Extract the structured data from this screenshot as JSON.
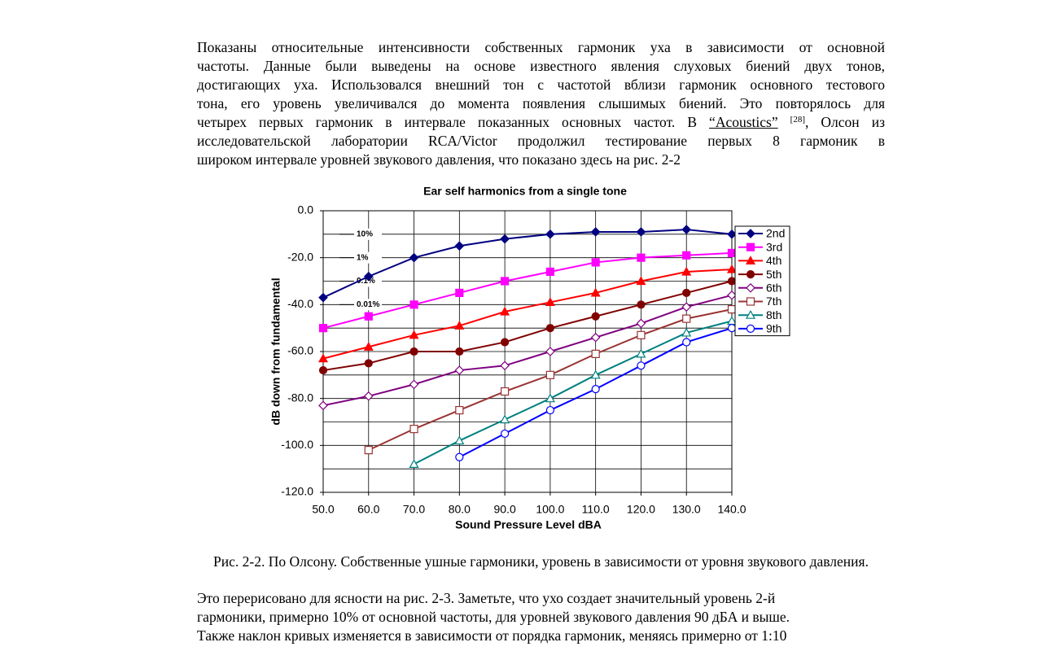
{
  "intro_lines": [
    "Показаны относительные интенсивности собственных гармоник уха в зависимости от основной",
    "частоты. Данные были выведены на основе известного явления слуховых биений двух тонов,",
    "достигающих уха. Использовался внешний тон с частотой вблизи гармоник основного тестового",
    "тона, его уровень увеличивался до момента появления слышимых биений. Это повторялось для",
    {
      "before": "четырех первых гармоник в интервале показанных основных частот. В ",
      "link": "“Acoustics”",
      "ref": "[28]",
      "after": ", Олсон из"
    },
    "исследовательской лаборатории RCA/Victor продолжил тестирование первых 8 гармоник в",
    "широком интервале уровней звукового давления, что показано здесь на рис. 2-2"
  ],
  "chart_data": {
    "type": "line",
    "title": "Ear self harmonics from a single tone",
    "x_label": "Sound Pressure Level dBA",
    "y_label": "dB down from fundamental",
    "x": [
      50,
      60,
      70,
      80,
      90,
      100,
      110,
      120,
      130,
      140
    ],
    "xlim": [
      50,
      140
    ],
    "xticks": [
      {
        "value": 50,
        "label": "50.0"
      },
      {
        "value": 60,
        "label": "60.0"
      },
      {
        "value": 70,
        "label": "70.0"
      },
      {
        "value": 80,
        "label": "80.0"
      },
      {
        "value": 90,
        "label": "90.0"
      },
      {
        "value": 100,
        "label": "100.0"
      },
      {
        "value": 110,
        "label": "110.0"
      },
      {
        "value": 120,
        "label": "120.0"
      },
      {
        "value": 130,
        "label": "130.0"
      },
      {
        "value": 140,
        "label": "140.0"
      }
    ],
    "ylim": [
      -120,
      0
    ],
    "yticks": [
      {
        "value": 0,
        "label": "0.0"
      },
      {
        "value": -20,
        "label": "-20.0"
      },
      {
        "value": -40,
        "label": "-40.0"
      },
      {
        "value": -60,
        "label": "-60.0"
      },
      {
        "value": -80,
        "label": "-80.0"
      },
      {
        "value": -100,
        "label": "-100.0"
      },
      {
        "value": -120,
        "label": "-120.0"
      }
    ],
    "y_minor_grid": [
      -10,
      -30,
      -50,
      -70,
      -90,
      -110
    ],
    "grid": true,
    "legend": "right",
    "annotations": [
      {
        "text": "10%",
        "y": -10
      },
      {
        "text": "1%",
        "y": -20
      },
      {
        "text": "0.1%",
        "y": -30
      },
      {
        "text": "0.01%",
        "y": -40
      }
    ],
    "series": [
      {
        "name": "2nd",
        "color": "#000080",
        "marker": "diamond",
        "filled": true,
        "values": [
          -37,
          -28,
          -20,
          -15,
          -12,
          -10,
          -9,
          -9,
          -8,
          -10
        ]
      },
      {
        "name": "3rd",
        "color": "#ff00ff",
        "marker": "square",
        "filled": true,
        "values": [
          -50,
          -45,
          -40,
          -35,
          -30,
          -26,
          -22,
          -20,
          -19,
          -18
        ]
      },
      {
        "name": "4th",
        "color": "#ff0000",
        "marker": "triangle",
        "filled": true,
        "values": [
          -63,
          -58,
          -53,
          -49,
          -43,
          -39,
          -35,
          -30,
          -26,
          -25
        ]
      },
      {
        "name": "5th",
        "color": "#800000",
        "marker": "circle",
        "filled": true,
        "values": [
          -68,
          -65,
          -60,
          -60,
          -56,
          -50,
          -45,
          -40,
          -35,
          -30
        ]
      },
      {
        "name": "6th",
        "color": "#800080",
        "marker": "diamond",
        "filled": false,
        "values": [
          -83,
          -79,
          -74,
          -68,
          -66,
          -60,
          -54,
          -48,
          -41,
          -36
        ]
      },
      {
        "name": "7th",
        "color": "#993333",
        "marker": "square",
        "filled": false,
        "values": [
          null,
          -102,
          -93,
          -85,
          -77,
          -70,
          -61,
          -53,
          -46,
          -42
        ]
      },
      {
        "name": "8th",
        "color": "#008080",
        "marker": "triangle",
        "filled": false,
        "values": [
          null,
          null,
          -108,
          -98,
          -89,
          -80,
          -70,
          -61,
          -52,
          -47
        ]
      },
      {
        "name": "9th",
        "color": "#0000ff",
        "marker": "circle",
        "filled": false,
        "values": [
          null,
          null,
          null,
          -105,
          -95,
          -85,
          -76,
          -66,
          -56,
          -50
        ]
      }
    ]
  },
  "caption": "Рис. 2-2. По Олсону. Собственные ушные гармоники, уровень в зависимости от уровня звукового давления.",
  "after_lines": [
    "Это перерисовано для ясности на рис. 2-3. Заметьте, что ухо создает значительный уровень 2-й",
    "гармоники, примерно 10% от основной частоты, для уровней звукового давления 90 дБА и выше.",
    "Также наклон кривых изменяется в зависимости от порядка гармоник, меняясь примерно от 1:10"
  ]
}
